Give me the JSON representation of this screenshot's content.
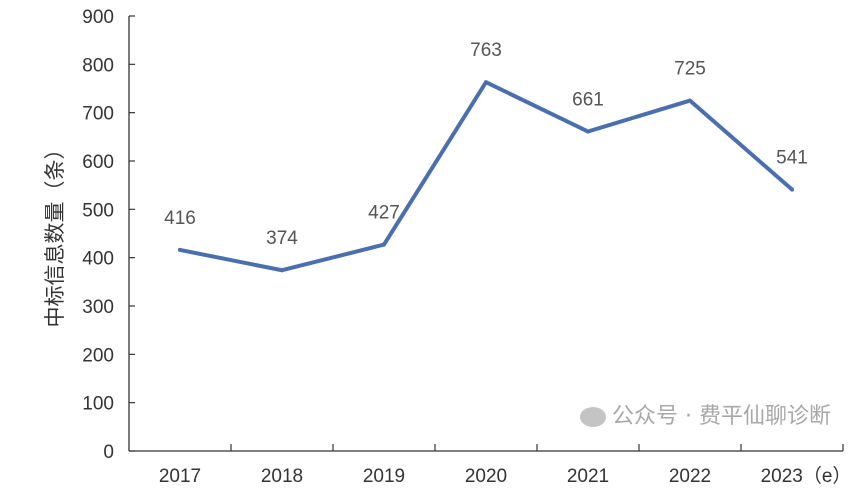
{
  "chart_data": {
    "type": "line",
    "title": "",
    "xlabel": "",
    "ylabel": "中标信息数量（条）",
    "categories": [
      "2017",
      "2018",
      "2019",
      "2020",
      "2021",
      "2022",
      "2023（e）"
    ],
    "series": [
      {
        "name": "中标信息数量",
        "values": [
          416,
          374,
          427,
          763,
          661,
          725,
          541
        ],
        "color": "#4a6fae"
      }
    ],
    "ylim": [
      0,
      900
    ],
    "yticks": [
      0,
      100,
      200,
      300,
      400,
      500,
      600,
      700,
      800,
      900
    ],
    "grid": false,
    "data_labels": true
  },
  "watermark": "公众号 · 费平仙聊诊断"
}
